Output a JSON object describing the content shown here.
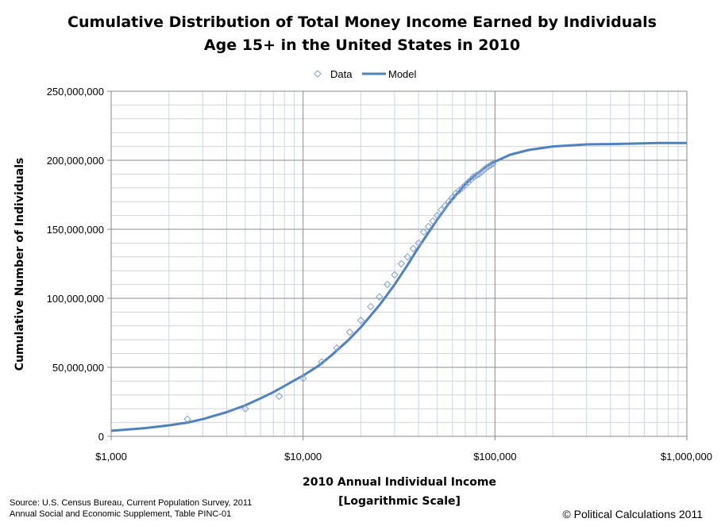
{
  "chart_data": {
    "type": "scatter",
    "title": "Cumulative Distribution of Total Money Income Earned by Individuals",
    "subtitle": "Age 15+ in the United States in 2010",
    "xlabel": "2010 Annual Individual Income",
    "xlabel_note": "[Logarithmic Scale]",
    "ylabel": "Cumulative Number of Individuals",
    "x_scale": "log",
    "xlim": [
      1000,
      1000000
    ],
    "ylim": [
      0,
      250000000
    ],
    "x_ticks": [
      1000,
      10000,
      100000,
      1000000
    ],
    "x_tick_labels": [
      "$1,000",
      "$10,000",
      "$100,000",
      "$1,000,000"
    ],
    "y_ticks": [
      0,
      50000000,
      100000000,
      150000000,
      200000000,
      250000000
    ],
    "y_tick_labels": [
      "0",
      "50,000,000",
      "100,000,000",
      "150,000,000",
      "200,000,000",
      "250,000,000"
    ],
    "grid": true,
    "legend_position": "top-center",
    "series": [
      {
        "name": "Data",
        "marker": "diamond",
        "color": "#7f9fcf",
        "x": [
          2500,
          5000,
          7500,
          10000,
          12500,
          15000,
          17500,
          20000,
          22500,
          25000,
          27500,
          30000,
          32500,
          35000,
          37500,
          40000,
          42500,
          45000,
          47500,
          50000,
          52500,
          55000,
          57500,
          60000,
          62500,
          65000,
          67500,
          70000,
          72500,
          75000,
          77500,
          80000,
          82500,
          85000,
          87500,
          90000,
          92500,
          95000,
          97500
        ],
        "y": [
          12500000,
          20000000,
          29000000,
          42000000,
          54000000,
          64000000,
          75500000,
          84000000,
          94000000,
          101000000,
          110000000,
          117000000,
          125000000,
          130000000,
          136000000,
          140000000,
          148000000,
          152000000,
          156000000,
          160000000,
          164000000,
          167000000,
          170000000,
          173000000,
          176000000,
          178000000,
          180000000,
          182000000,
          184000000,
          186000000,
          188000000,
          189000000,
          190000000,
          191500000,
          193000000,
          194500000,
          195500000,
          196500000,
          197500000
        ]
      },
      {
        "name": "Model",
        "line": true,
        "color": "#4f81bd",
        "x": [
          1000,
          1500,
          2000,
          2500,
          3000,
          4000,
          5000,
          6000,
          7000,
          8000,
          9000,
          10000,
          12000,
          14000,
          17000,
          20000,
          25000,
          30000,
          35000,
          40000,
          45000,
          50000,
          60000,
          70000,
          80000,
          90000,
          100000,
          120000,
          150000,
          200000,
          300000,
          400000,
          500000,
          700000,
          1000000
        ],
        "y": [
          4000000,
          6000000,
          8000000,
          10000000,
          12500000,
          17500000,
          22500000,
          27500000,
          32000000,
          36500000,
          40500000,
          44000000,
          51000000,
          58500000,
          69000000,
          79000000,
          95000000,
          110000000,
          124000000,
          137000000,
          147500000,
          157000000,
          172000000,
          182500000,
          190000000,
          195500000,
          199000000,
          204000000,
          207500000,
          210000000,
          211500000,
          211700000,
          212000000,
          212500000,
          212500000
        ]
      }
    ]
  },
  "footer": {
    "source_line1": "Source: U.S. Census Bureau, Current Population Survey, 2011",
    "source_line2": "Annual Social and Economic Supplement, Table PINC-01",
    "copyright": "© Political Calculations 2011"
  }
}
